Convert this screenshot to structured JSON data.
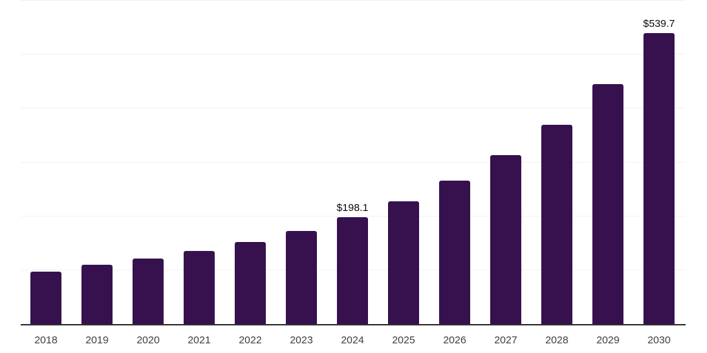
{
  "chart_data": {
    "type": "bar",
    "title": "",
    "xlabel": "",
    "ylabel": "",
    "categories": [
      "2018",
      "2019",
      "2020",
      "2021",
      "2022",
      "2023",
      "2024",
      "2025",
      "2026",
      "2027",
      "2028",
      "2029",
      "2030"
    ],
    "values": [
      97,
      110,
      122,
      136,
      152,
      173,
      198.1,
      228,
      266,
      313,
      370,
      445,
      539.7
    ],
    "value_prefix": "$",
    "annotations": [
      {
        "category": "2024",
        "text": "$198.1"
      },
      {
        "category": "2030",
        "text": "$539.7"
      }
    ],
    "ylim": [
      0,
      600
    ],
    "grid_step": 100,
    "grid": true,
    "legend": "none",
    "colors": {
      "bar": "#36114E",
      "axis": "#2F2F2F",
      "gridline": "#F1F1F1",
      "tick_label": "#3E3E3E",
      "annotation": "#0A0A0A",
      "background": "#FFFFFF"
    }
  }
}
